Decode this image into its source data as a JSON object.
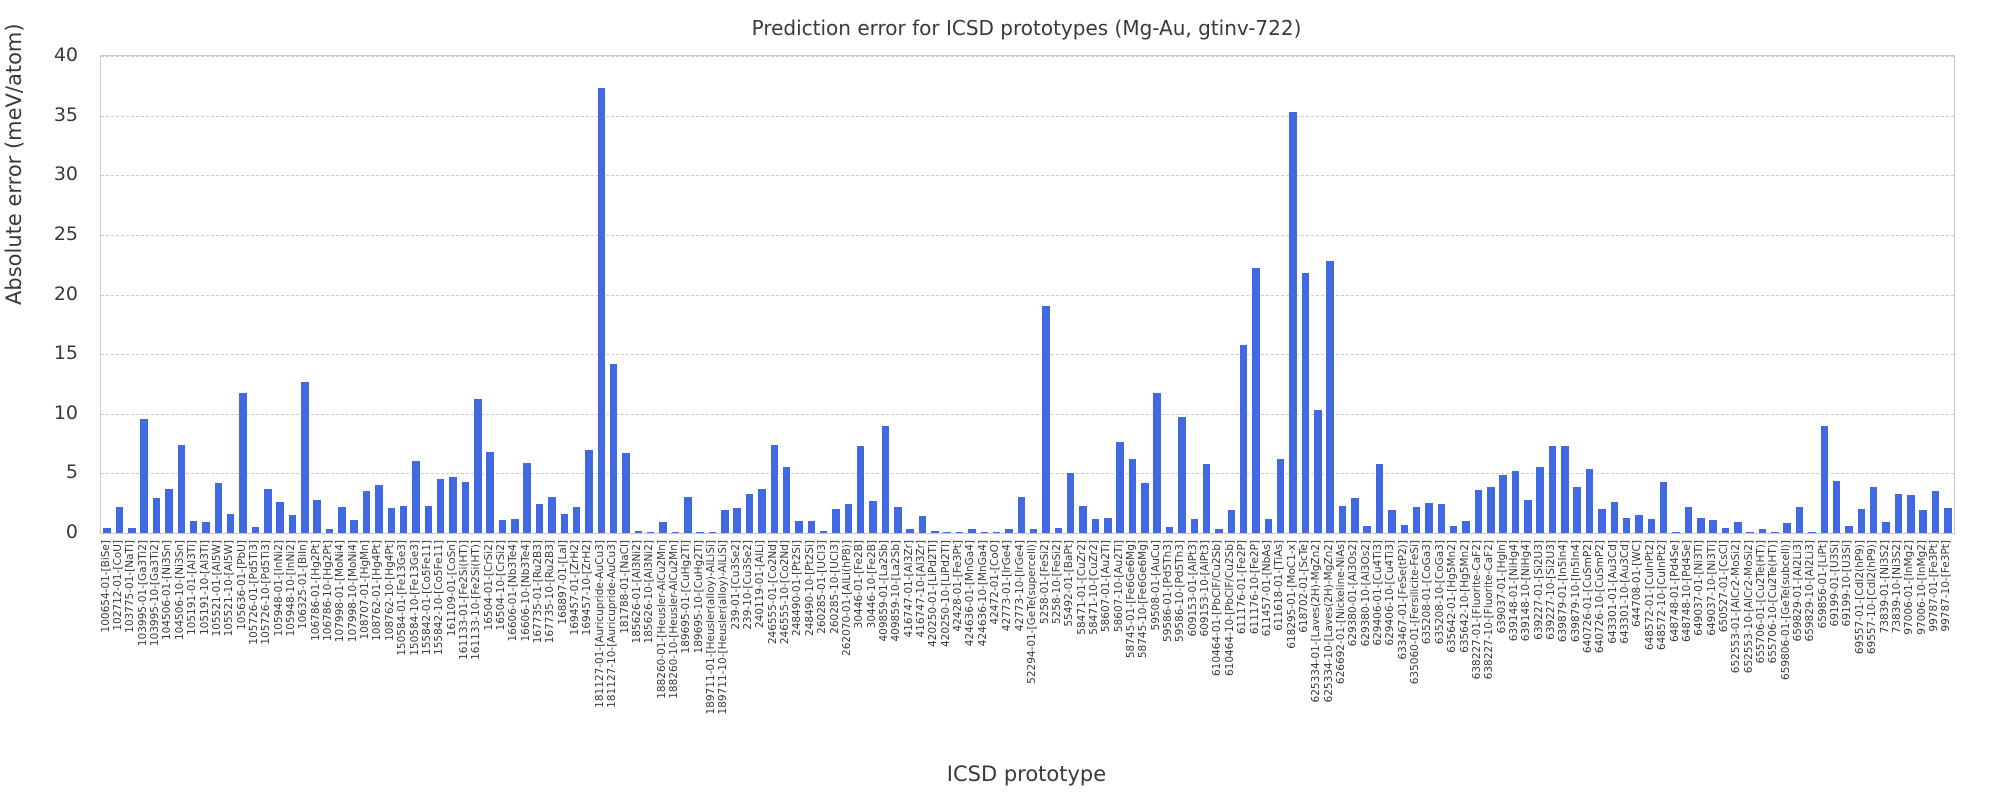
{
  "figure": {
    "title": "Prediction error for ICSD prototypes (Mg-Au, gtinv-722)",
    "xlabel": "ICSD prototype",
    "ylabel": "Absolute error (meV/atom)"
  },
  "style": {
    "bar_color": "#4169e1",
    "grid_color": "#cccccc",
    "spine_color": "#c9c9c9",
    "text_color": "#3a3a3a"
  },
  "chart_data": {
    "type": "bar",
    "title": "Prediction error for ICSD prototypes (Mg-Au, gtinv-722)",
    "xlabel": "ICSD prototype",
    "ylabel": "Absolute error (meV/atom)",
    "ylim": [
      0,
      40
    ],
    "yticks": [
      0,
      5,
      10,
      15,
      20,
      25,
      30,
      35,
      40
    ],
    "grid": "horizontal-dashed",
    "legend_position": "none",
    "categories": [
      "100654-01-[BiSe]",
      "102712-01-[CoU]",
      "103775-01-[NaTl]",
      "103995-01-[Ga3Ti2]",
      "103995-10-[Ga3Ti2]",
      "104506-01-[Ni3Sn]",
      "104506-10-[Ni3Sn]",
      "105191-01-[Al3Ti]",
      "105191-10-[Al3Ti]",
      "105521-01-[Al5W]",
      "105521-10-[Al5W]",
      "105636-01-[PbU]",
      "105726-01-[Pd5Ti3]",
      "105726-10-[Pd5Ti3]",
      "105948-01-[InNi2]",
      "105948-10-[InNi2]",
      "106325-01-[BiIn]",
      "106786-01-[Hg2Pt]",
      "106786-10-[Hg2Pt]",
      "107998-01-[MoNi4]",
      "107998-10-[MoNi4]",
      "108707-01-[HgMn]",
      "108762-01-[Hg4Pt]",
      "108762-10-[Hg4Pt]",
      "150584-01-[Fe13Ge3]",
      "150584-10-[Fe13Ge3]",
      "155842-01-[Co5Fe11]",
      "155842-10-[Co5Fe11]",
      "161109-01-[CoSn]",
      "161133-01-[Fe2Si(HT)]",
      "161133-10-[Fe2Si(HT)]",
      "16504-01-[CrSi2]",
      "16504-10-[CrSi2]",
      "16606-01-[Nb3Te4]",
      "16606-10-[Nb3Te4]",
      "167735-01-[Ru2B3]",
      "167735-10-[Ru2B3]",
      "168897-01-[LaI]",
      "169457-01-[ZrH2]",
      "169457-10-[ZrH2]",
      "181127-01-[Auricupride-AuCu3]",
      "181127-10-[Auricupride-AuCu3]",
      "181788-01-[NaCl]",
      "185626-01-[Al3Ni2]",
      "185626-10-[Al3Ni2]",
      "188260-01-[Heusler-AlCu2Mn]",
      "188260-10-[Heusler-AlCu2Mn]",
      "189695-01-[CuHg2Ti]",
      "189695-10-[CuHg2Ti]",
      "189711-01-[Heusler(alloy)-AlLiSi]",
      "189711-10-[Heusler(alloy)-AlLiSi]",
      "239-01-[Cu3Se2]",
      "239-10-[Cu3Se2]",
      "240119-01-[AlLi]",
      "246555-01-[Co2Nd]",
      "246555-10-[Co2Nd]",
      "248490-01-[Pt2Si]",
      "248490-10-[Pt2Si]",
      "260285-01-[UCl3]",
      "260285-10-[UCl3]",
      "262070-01-[AlLi(hP8)]",
      "30446-01-[Fe2B]",
      "30446-10-[Fe2B]",
      "409859-01-[La2Sb]",
      "409859-10-[La2Sb]",
      "416747-01-[Al3Zr]",
      "416747-10-[Al3Zr]",
      "420250-01-[LiPd2Tl]",
      "420250-10-[LiPd2Tl]",
      "42428-01-[Fe3Pt]",
      "424636-01-[MnGa4]",
      "424636-10-[MnGa4]",
      "42472-01-[CoO]",
      "42773-01-[IrGe4]",
      "42773-10-[IrGe4]",
      "52294-01-[GeTe(supercell)]",
      "5258-01-[FeSi2]",
      "5258-10-[FeSi2]",
      "55492-01-[BaPt]",
      "58471-01-[CuZr2]",
      "58471-10-[CuZr2]",
      "58607-01-[Au2Ti]",
      "58607-10-[Au2Ti]",
      "58745-01-[Fe6Ge6Mg]",
      "58745-10-[Fe6Ge6Mg]",
      "59508-01-[AuCu]",
      "59586-01-[Pd5Th3]",
      "59586-10-[Pd5Th3]",
      "609153-01-[AlPt3]",
      "609153-10-[AlPt3]",
      "610464-01-[PbClF/Cu2Sb]",
      "610464-10-[PbClF/Cu2Sb]",
      "611176-01-[Fe2P]",
      "611176-10-[Fe2P]",
      "611457-01-[NbAs]",
      "611618-01-[TiAs]",
      "618295-01-[MoC1-x]",
      "618702-01-[ScTe]",
      "625334-01-[Laves(2H)-MgZn2]",
      "625334-10-[Laves(2H)-MgZn2]",
      "626692-01-[Nickeline-NiAs]",
      "629380-01-[Al3Os2]",
      "629380-10-[Al3Os2]",
      "629406-01-[Cu4Ti3]",
      "629406-10-[Cu4Ti3]",
      "633467-01-[FeSe(tP2)]",
      "635060-01-[Fersilicite-FeSi]",
      "635208-01-[CoGa3]",
      "635208-10-[CoGa3]",
      "635642-01-[Hg5Mn2]",
      "635642-10-[Hg5Mn2]",
      "638227-01-[Fluorite-CaF2]",
      "638227-10-[Fluorite-CaF2]",
      "639037-01-[HgIn]",
      "639148-01-[NiHg4]",
      "639148-10-[NiHg4]",
      "639227-01-[Si2U3]",
      "639227-10-[Si2U3]",
      "639879-01-[In5In4]",
      "639879-10-[In5In4]",
      "640726-01-[CuSmP2]",
      "640726-10-[CuSmP2]",
      "643301-01-[Au3Cd]",
      "643301-10-[Au3Cd]",
      "644708-01-[WC]",
      "648572-01-[CuInPt2]",
      "648572-10-[CuInPt2]",
      "648748-01-[Pd4Se]",
      "648748-10-[Pd4Se]",
      "649037-01-[Ni3Ti]",
      "649037-10-[Ni3Ti]",
      "650527-01-[CsCl]",
      "652553-01-[AlCr2-MoSi2]",
      "652553-10-[AlCr2-MoSi2]",
      "655706-01-[Cu2Te(HT)]",
      "655706-10-[Cu2Te(HT)]",
      "659806-01-[GeTe(subcell)]",
      "659829-01-[Al2Li3]",
      "659829-10-[Al2Li3]",
      "659856-01-[LiPt]",
      "69199-01-[U3Si]",
      "69199-10-[U3Si]",
      "69557-01-[CdI2(hP9)]",
      "69557-10-[CdI2(hP9)]",
      "73839-01-[Ni3S2]",
      "73839-10-[Ni3S2]",
      "97006-01-[InMg2]",
      "97006-10-[InMg2]",
      "99787-01-[Fe3Pt]",
      "99787-10-[Fe3Pt]"
    ],
    "values": [
      0.4,
      2.2,
      0.4,
      9.6,
      2.9,
      3.7,
      7.4,
      1.0,
      0.9,
      4.2,
      1.6,
      11.7,
      0.5,
      3.7,
      2.6,
      1.5,
      12.7,
      2.8,
      0.3,
      2.2,
      1.1,
      3.5,
      4.0,
      2.1,
      2.3,
      6.0,
      2.3,
      4.5,
      4.7,
      4.3,
      11.2,
      6.8,
      1.1,
      1.2,
      5.9,
      2.4,
      3.0,
      1.6,
      2.2,
      7.0,
      37.3,
      14.2,
      6.7,
      0.2,
      0.1,
      0.9,
      0.1,
      3.0,
      0.1,
      0.1,
      1.9,
      2.1,
      3.3,
      3.7,
      7.4,
      5.5,
      1.0,
      1.0,
      0.2,
      2.0,
      2.4,
      7.3,
      2.7,
      9.0,
      2.2,
      0.3,
      1.4,
      0.2,
      0.1,
      0.1,
      0.3,
      0.1,
      0.1,
      0.3,
      3.0,
      0.3,
      19.0,
      0.4,
      5.0,
      2.3,
      1.2,
      1.3,
      7.6,
      6.2,
      4.2,
      11.7,
      0.5,
      9.7,
      1.2,
      5.8,
      0.3,
      1.9,
      15.8,
      22.2,
      1.2,
      6.2,
      35.3,
      21.8,
      10.3,
      22.8,
      2.3,
      2.9,
      0.6,
      5.8,
      1.9,
      0.7,
      2.2,
      2.5,
      2.4,
      0.6,
      1.0,
      3.6,
      3.9,
      4.9,
      5.2,
      2.8,
      5.5,
      7.3,
      7.3,
      3.9,
      5.4,
      2.0,
      2.6,
      1.3,
      1.5,
      1.2,
      4.3,
      0.1,
      2.2,
      1.3,
      1.1,
      0.4,
      0.9,
      0.1,
      0.3,
      0.1,
      0.8,
      2.2,
      0.1,
      9.0,
      4.4,
      0.6,
      2.0,
      3.9,
      0.9,
      3.3,
      3.2,
      1.9,
      3.5,
      2.1
    ]
  }
}
